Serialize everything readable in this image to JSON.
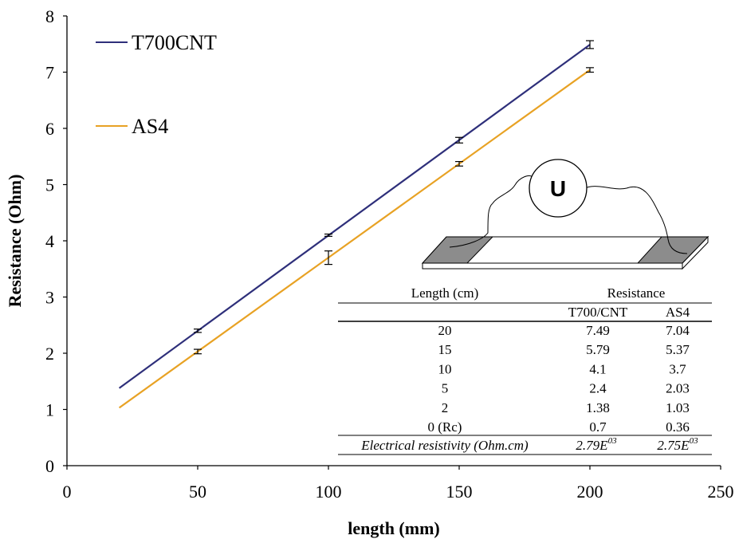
{
  "chart_data": {
    "type": "line",
    "xlabel": "length (mm)",
    "ylabel": "Resistance (Ohm)",
    "xlim": [
      0,
      250
    ],
    "ylim": [
      0,
      8
    ],
    "xticks": [
      0,
      50,
      100,
      150,
      200,
      250
    ],
    "yticks": [
      0,
      1,
      2,
      3,
      4,
      5,
      6,
      7,
      8
    ],
    "grid": false,
    "legend_position": "top-left",
    "series": [
      {
        "name": "T700CNT",
        "color": "#2e2f7a",
        "line": {
          "x": [
            20,
            200
          ],
          "y": [
            1.38,
            7.49
          ]
        },
        "points": [
          {
            "x": 50,
            "y": 2.4,
            "err": 0.03
          },
          {
            "x": 100,
            "y": 4.1,
            "err": 0.02
          },
          {
            "x": 150,
            "y": 5.79,
            "err": 0.05
          },
          {
            "x": 200,
            "y": 7.49,
            "err": 0.07
          }
        ]
      },
      {
        "name": "AS4",
        "color": "#e8a224",
        "line": {
          "x": [
            20,
            200
          ],
          "y": [
            1.03,
            7.04
          ]
        },
        "points": [
          {
            "x": 50,
            "y": 2.03,
            "err": 0.04
          },
          {
            "x": 100,
            "y": 3.7,
            "err": 0.12
          },
          {
            "x": 150,
            "y": 5.37,
            "err": 0.04
          },
          {
            "x": 200,
            "y": 7.04,
            "err": 0.04
          }
        ]
      }
    ]
  },
  "inset": {
    "meter_label": "U",
    "table": {
      "header_length": "Length (cm)",
      "header_resistance": "Resistance",
      "subheader_1": "T700/CNT",
      "subheader_2": "AS4",
      "rows": [
        [
          "20",
          "7.49",
          "7.04"
        ],
        [
          "15",
          "5.79",
          "5.37"
        ],
        [
          "10",
          "4.1",
          "3.7"
        ],
        [
          "5",
          "2.4",
          "2.03"
        ],
        [
          "2",
          "1.38",
          "1.03"
        ],
        [
          "0 (Rc)",
          "0.7",
          "0.36"
        ]
      ],
      "footer_label": "Electrical resistivity (Ohm.cm)",
      "footer_val_1": "2.79E",
      "footer_exp_1": "03",
      "footer_val_2": "2.75E",
      "footer_exp_2": "03"
    }
  }
}
